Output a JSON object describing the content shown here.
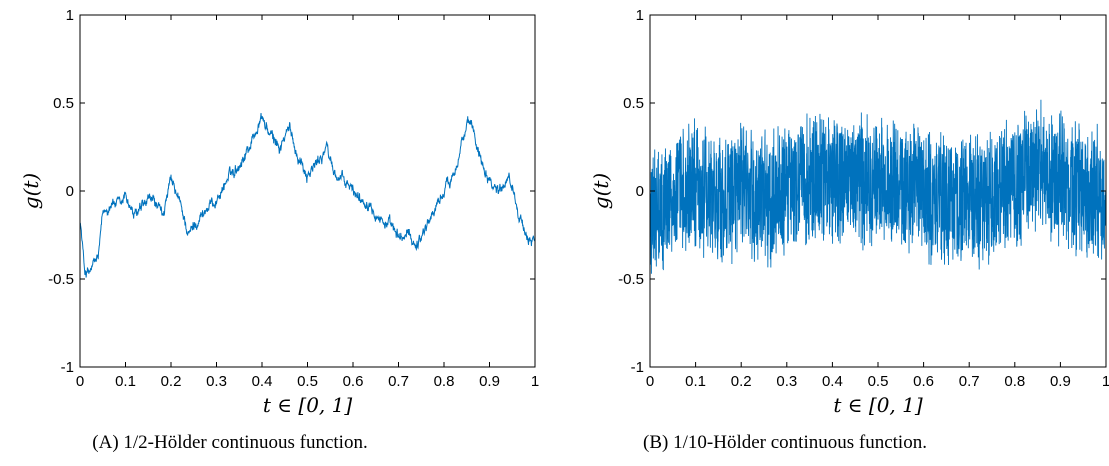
{
  "chart_data": [
    {
      "type": "line",
      "caption": "(A) 1/2-Hölder continuous function.",
      "xlabel": "t ∈ [0, 1]",
      "ylabel": "g(t)",
      "xlim": [
        0,
        1
      ],
      "ylim": [
        -1,
        1
      ],
      "xticks": [
        "0",
        "0.1",
        "0.2",
        "0.3",
        "0.4",
        "0.5",
        "0.6",
        "0.7",
        "0.8",
        "0.9",
        "1"
      ],
      "yticks": [
        "1",
        "0.5",
        "0",
        "-0.5",
        "-1"
      ],
      "grid": false,
      "series_color": "#0072BD",
      "anchors": [
        [
          0.0,
          -0.15
        ],
        [
          0.01,
          -0.45
        ],
        [
          0.02,
          -0.47
        ],
        [
          0.04,
          -0.38
        ],
        [
          0.05,
          -0.15
        ],
        [
          0.07,
          -0.05
        ],
        [
          0.09,
          -0.1
        ],
        [
          0.1,
          -0.02
        ],
        [
          0.12,
          -0.15
        ],
        [
          0.14,
          -0.1
        ],
        [
          0.16,
          -0.05
        ],
        [
          0.18,
          -0.15
        ],
        [
          0.2,
          0.05
        ],
        [
          0.22,
          -0.08
        ],
        [
          0.24,
          -0.25
        ],
        [
          0.26,
          -0.15
        ],
        [
          0.28,
          -0.1
        ],
        [
          0.3,
          -0.05
        ],
        [
          0.32,
          0.05
        ],
        [
          0.34,
          0.12
        ],
        [
          0.36,
          0.2
        ],
        [
          0.38,
          0.3
        ],
        [
          0.4,
          0.42
        ],
        [
          0.42,
          0.3
        ],
        [
          0.44,
          0.25
        ],
        [
          0.46,
          0.35
        ],
        [
          0.48,
          0.2
        ],
        [
          0.5,
          0.1
        ],
        [
          0.52,
          0.15
        ],
        [
          0.54,
          0.25
        ],
        [
          0.56,
          0.1
        ],
        [
          0.58,
          0.05
        ],
        [
          0.6,
          0.0
        ],
        [
          0.62,
          -0.05
        ],
        [
          0.64,
          -0.05
        ],
        [
          0.66,
          -0.15
        ],
        [
          0.68,
          -0.2
        ],
        [
          0.7,
          -0.28
        ],
        [
          0.72,
          -0.25
        ],
        [
          0.74,
          -0.3
        ],
        [
          0.76,
          -0.2
        ],
        [
          0.78,
          -0.1
        ],
        [
          0.8,
          0.0
        ],
        [
          0.82,
          0.1
        ],
        [
          0.84,
          0.3
        ],
        [
          0.86,
          0.38
        ],
        [
          0.88,
          0.2
        ],
        [
          0.9,
          0.08
        ],
        [
          0.92,
          0.0
        ],
        [
          0.94,
          0.1
        ],
        [
          0.96,
          -0.05
        ],
        [
          0.98,
          -0.3
        ],
        [
          1.0,
          -0.25
        ]
      ],
      "noise_amplitude": 0.04
    },
    {
      "type": "line",
      "caption": "(B) 1/10-Hölder continuous function.",
      "xlabel": "t ∈ [0, 1]",
      "ylabel": "g(t)",
      "xlim": [
        0,
        1
      ],
      "ylim": [
        -1,
        1
      ],
      "xticks": [
        "0",
        "0.1",
        "0.2",
        "0.3",
        "0.4",
        "0.5",
        "0.6",
        "0.7",
        "0.8",
        "0.9",
        "1"
      ],
      "yticks": [
        "1",
        "0.5",
        "0",
        "-0.5",
        "-1"
      ],
      "grid": false,
      "series_color": "#0072BD",
      "anchors": [
        [
          0.0,
          -0.1
        ],
        [
          0.02,
          -0.15
        ],
        [
          0.05,
          0.0
        ],
        [
          0.1,
          0.0
        ],
        [
          0.15,
          -0.05
        ],
        [
          0.2,
          0.0
        ],
        [
          0.25,
          -0.05
        ],
        [
          0.3,
          0.0
        ],
        [
          0.35,
          0.05
        ],
        [
          0.4,
          0.1
        ],
        [
          0.45,
          0.05
        ],
        [
          0.5,
          0.05
        ],
        [
          0.55,
          0.0
        ],
        [
          0.6,
          0.0
        ],
        [
          0.65,
          -0.05
        ],
        [
          0.7,
          -0.05
        ],
        [
          0.75,
          -0.05
        ],
        [
          0.8,
          0.05
        ],
        [
          0.85,
          0.15
        ],
        [
          0.9,
          0.05
        ],
        [
          0.95,
          0.0
        ],
        [
          1.0,
          -0.05
        ]
      ],
      "noise_amplitude": 0.42
    }
  ]
}
